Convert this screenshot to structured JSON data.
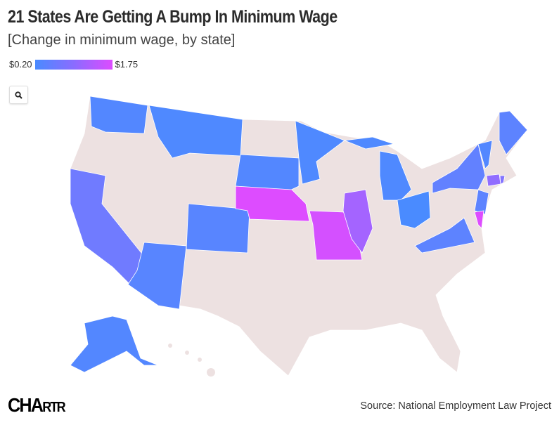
{
  "header": {
    "title": "21 States Are Getting A Bump In Minimum Wage",
    "subtitle": "[Change in minimum wage, by state]"
  },
  "legend": {
    "min_label": "$0.20",
    "max_label": "$1.75",
    "min_value": 0.2,
    "max_value": 1.75,
    "min_color": "#4a8bff",
    "max_color": "#dd4cff"
  },
  "controls": {
    "zoom_icon": "search-icon"
  },
  "map": {
    "type": "choropleth",
    "region": "United States",
    "no_change_color": "#ede1e1",
    "states": [
      {
        "name": "Washington",
        "value": 0.3
      },
      {
        "name": "Montana",
        "value": 0.25
      },
      {
        "name": "California",
        "value": 0.6
      },
      {
        "name": "Arizona",
        "value": 0.35
      },
      {
        "name": "Colorado",
        "value": 0.35
      },
      {
        "name": "South Dakota",
        "value": 0.3
      },
      {
        "name": "Nebraska",
        "value": 1.75
      },
      {
        "name": "Minnesota",
        "value": 0.25
      },
      {
        "name": "Missouri",
        "value": 1.65
      },
      {
        "name": "Illinois",
        "value": 1.15
      },
      {
        "name": "Michigan",
        "value": 0.25
      },
      {
        "name": "Ohio",
        "value": 0.2
      },
      {
        "name": "Virginia",
        "value": 0.4
      },
      {
        "name": "New York",
        "value": 0.45
      },
      {
        "name": "Vermont",
        "value": 0.3
      },
      {
        "name": "Maine",
        "value": 0.4
      },
      {
        "name": "New Jersey",
        "value": 0.4
      },
      {
        "name": "Delaware",
        "value": 1.75
      },
      {
        "name": "Connecticut",
        "value": 0.95
      },
      {
        "name": "Rhode Island",
        "value": 0.8
      },
      {
        "name": "Alaska",
        "value": 0.3
      }
    ]
  },
  "footer": {
    "logo_text": "CHARTR",
    "source": "Source: National Employment Law Project"
  }
}
